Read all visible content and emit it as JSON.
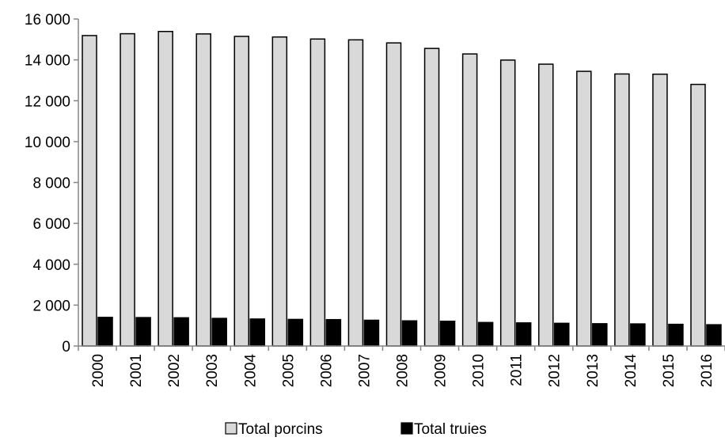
{
  "chart_data": {
    "type": "bar",
    "categories": [
      "2000",
      "2001",
      "2002",
      "2003",
      "2004",
      "2005",
      "2006",
      "2007",
      "2008",
      "2009",
      "2010",
      "2011",
      "2012",
      "2013",
      "2014",
      "2015",
      "2016"
    ],
    "series": [
      {
        "name": "Total porcins",
        "color": "#d9d9d9",
        "values": [
          15190,
          15280,
          15390,
          15270,
          15150,
          15120,
          15020,
          14980,
          14830,
          14560,
          14290,
          13990,
          13790,
          13440,
          13310,
          13300,
          12800
        ]
      },
      {
        "name": "Total truies",
        "color": "#000000",
        "values": [
          1400,
          1390,
          1380,
          1350,
          1320,
          1300,
          1290,
          1260,
          1230,
          1210,
          1150,
          1130,
          1110,
          1090,
          1080,
          1060,
          1040
        ]
      }
    ],
    "ylim": [
      0,
      16000
    ],
    "yticks": [
      0,
      2000,
      4000,
      6000,
      8000,
      10000,
      12000,
      14000,
      16000
    ],
    "ytick_labels": [
      "0",
      "2 000",
      "4 000",
      "6 000",
      "8 000",
      "10 000",
      "12 000",
      "14 000",
      "16 000"
    ],
    "grid": false,
    "legend_position": "bottom",
    "title": "",
    "xlabel": "",
    "ylabel": ""
  }
}
